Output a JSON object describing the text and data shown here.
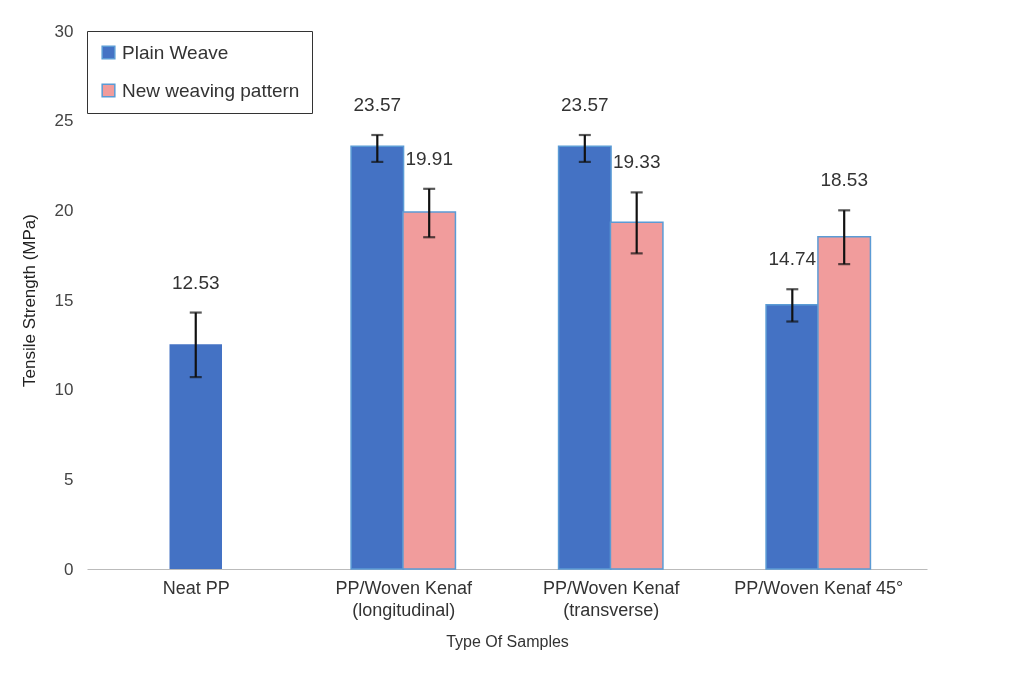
{
  "chart_data": {
    "type": "bar",
    "xlabel": "Type Of Samples",
    "ylabel": "Tensile Strength (MPa)",
    "categories": [
      "Neat PP",
      "PP/Woven Kenaf\n(longitudinal)",
      "PP/Woven Kenaf\n(transverse)",
      "PP/Woven Kenaf 45°"
    ],
    "series": [
      {
        "color": "#4472c4",
        "values": [
          12.53,
          null,
          null,
          null
        ],
        "errors": [
          [
            10.7,
            14.3
          ],
          null,
          null,
          null
        ]
      },
      {
        "name": "Plain Weave",
        "color": "#4472c4",
        "values": [
          null,
          23.57,
          23.57,
          14.74
        ],
        "errors": [
          null,
          [
            22.7,
            24.2
          ],
          [
            22.7,
            24.2
          ],
          [
            13.8,
            15.6
          ]
        ]
      },
      {
        "name": "New weaving pattern",
        "color": "#f19c9c",
        "values": [
          null,
          19.91,
          19.33,
          18.53
        ],
        "errors": [
          null,
          [
            18.5,
            21.2
          ],
          [
            17.6,
            21.0
          ],
          [
            17.0,
            20.0
          ]
        ]
      }
    ],
    "ylim": [
      0,
      30
    ],
    "yticks": [
      0,
      5,
      10,
      15,
      20,
      25,
      30
    ],
    "grid": false,
    "legend": "top left",
    "data_labels": true
  }
}
